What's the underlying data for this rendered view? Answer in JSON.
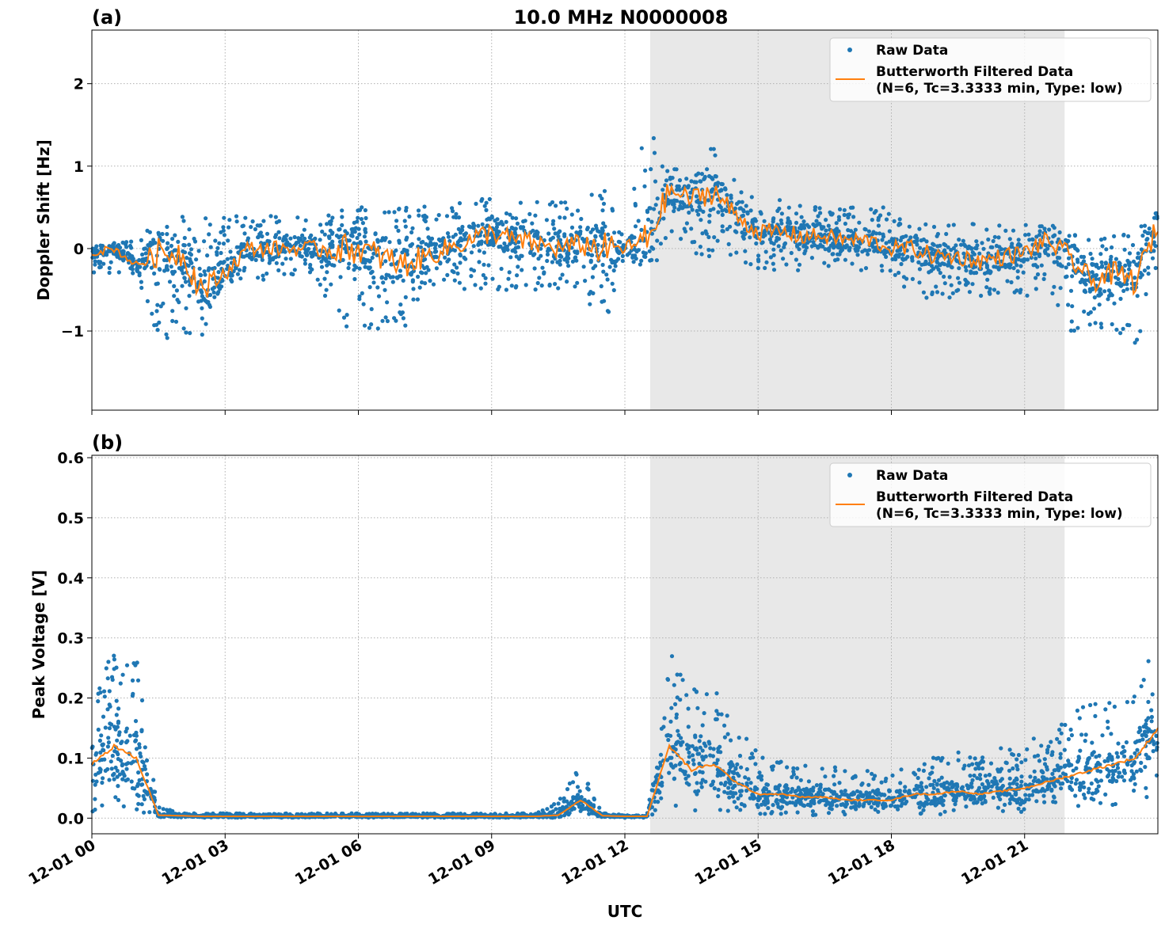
{
  "chart_data": [
    {
      "type": "scatter+line",
      "panel_label": "(a)",
      "title": "10.0 MHz N0000008",
      "xlabel": "",
      "ylabel": "Doppler Shift [Hz]",
      "xlim_hours": [
        0,
        24
      ],
      "ylim": [
        -1.96,
        2.65
      ],
      "yticks": [
        {
          "v": -1,
          "label": "−1"
        },
        {
          "v": 0,
          "label": "0"
        },
        {
          "v": 1,
          "label": "1"
        },
        {
          "v": 2,
          "label": "2"
        }
      ],
      "shaded_interval_hours": [
        12.57,
        21.9
      ],
      "grid": true,
      "legend": {
        "position": "top-right",
        "entries": [
          "Raw Data",
          "Butterworth Filtered Data",
          "(N=6, Tc=3.3333 min, Type: low)"
        ]
      },
      "t_hours": [
        0,
        0.5,
        1,
        1.5,
        2,
        2.5,
        3,
        3.5,
        4,
        4.5,
        5,
        5.5,
        6,
        6.5,
        7,
        7.5,
        8,
        8.5,
        9,
        9.5,
        10,
        10.5,
        11,
        11.5,
        12,
        12.5,
        13,
        13.5,
        14,
        14.5,
        15,
        15.5,
        16,
        16.5,
        17,
        17.5,
        18,
        18.5,
        19,
        19.5,
        20,
        20.5,
        21,
        21.5,
        22,
        22.5,
        23,
        23.5,
        24
      ],
      "series": [
        {
          "name": "Butterworth Filtered Data",
          "kind": "line",
          "color": "#ff7f0e",
          "values": [
            -0.05,
            0.0,
            -0.2,
            -0.05,
            -0.05,
            -0.5,
            -0.3,
            0.0,
            0.0,
            0.0,
            0.0,
            0.0,
            0.0,
            -0.1,
            -0.2,
            -0.1,
            0.0,
            0.1,
            0.2,
            0.1,
            0.05,
            0.0,
            0.05,
            0.0,
            0.0,
            0.1,
            0.7,
            0.6,
            0.7,
            0.4,
            0.2,
            0.2,
            0.15,
            0.15,
            0.1,
            0.1,
            0.0,
            0.0,
            -0.1,
            -0.1,
            -0.15,
            -0.1,
            -0.05,
            0.1,
            -0.1,
            -0.4,
            -0.3,
            -0.4,
            0.3
          ]
        },
        {
          "name": "Raw Data",
          "kind": "scatter-envelope",
          "color": "#1f77b4",
          "low": [
            -0.3,
            -0.3,
            -0.3,
            -1.1,
            -1.1,
            -1.1,
            -0.4,
            -0.4,
            -0.4,
            -0.4,
            -0.4,
            -1.0,
            -1.0,
            -1.0,
            -1.0,
            -0.5,
            -0.5,
            -0.5,
            -0.5,
            -0.5,
            -0.5,
            -0.5,
            -0.5,
            -1.0,
            -0.3,
            -0.2,
            -0.1,
            -0.1,
            -0.1,
            -0.1,
            -0.3,
            -0.3,
            -0.3,
            -0.3,
            -0.3,
            -0.3,
            -0.3,
            -0.6,
            -0.6,
            -0.6,
            -0.6,
            -0.6,
            -0.6,
            -0.4,
            -1.0,
            -1.0,
            -1.0,
            -1.2,
            -0.5
          ],
          "high": [
            0.1,
            0.1,
            0.1,
            0.4,
            0.4,
            0.4,
            0.4,
            0.4,
            0.4,
            0.4,
            0.4,
            0.5,
            0.5,
            0.5,
            0.5,
            0.6,
            0.6,
            0.6,
            0.6,
            0.6,
            0.6,
            0.6,
            0.6,
            0.8,
            0.3,
            1.8,
            1.0,
            0.9,
            1.3,
            0.8,
            0.6,
            0.6,
            0.6,
            0.5,
            0.5,
            0.5,
            0.5,
            0.3,
            0.3,
            0.3,
            0.3,
            0.3,
            0.3,
            0.5,
            0.2,
            0.2,
            0.2,
            0.2,
            0.6
          ]
        }
      ]
    },
    {
      "type": "scatter+line",
      "panel_label": "(b)",
      "xlabel": "UTC",
      "ylabel": "Peak Voltage [V]",
      "xlim_hours": [
        0,
        24
      ],
      "ylim": [
        -0.026,
        0.604
      ],
      "yticks": [
        {
          "v": 0.0,
          "label": "0.0"
        },
        {
          "v": 0.1,
          "label": "0.1"
        },
        {
          "v": 0.2,
          "label": "0.2"
        },
        {
          "v": 0.3,
          "label": "0.3"
        },
        {
          "v": 0.4,
          "label": "0.4"
        },
        {
          "v": 0.5,
          "label": "0.5"
        },
        {
          "v": 0.6,
          "label": "0.6"
        }
      ],
      "xticks": [
        {
          "v": 0,
          "label": "12-01 00"
        },
        {
          "v": 3,
          "label": "12-01 03"
        },
        {
          "v": 6,
          "label": "12-01 06"
        },
        {
          "v": 9,
          "label": "12-01 09"
        },
        {
          "v": 12,
          "label": "12-01 12"
        },
        {
          "v": 15,
          "label": "12-01 15"
        },
        {
          "v": 18,
          "label": "12-01 18"
        },
        {
          "v": 21,
          "label": "12-01 21"
        }
      ],
      "shaded_interval_hours": [
        12.57,
        21.9
      ],
      "grid": true,
      "legend": {
        "position": "top-right",
        "entries": [
          "Raw Data",
          "Butterworth Filtered Data",
          "(N=6, Tc=3.3333 min, Type: low)"
        ]
      },
      "t_hours": [
        0,
        0.5,
        1,
        1.5,
        2,
        2.5,
        3,
        3.5,
        4,
        4.5,
        5,
        5.5,
        6,
        6.5,
        7,
        7.5,
        8,
        8.5,
        9,
        9.5,
        10,
        10.5,
        11,
        11.5,
        12,
        12.5,
        13,
        13.5,
        14,
        14.5,
        15,
        15.5,
        16,
        16.5,
        17,
        17.5,
        18,
        18.5,
        19,
        19.5,
        20,
        20.5,
        21,
        21.5,
        22,
        22.5,
        23,
        23.5,
        24
      ],
      "series": [
        {
          "name": "Butterworth Filtered Data",
          "kind": "line",
          "color": "#ff7f0e",
          "values": [
            0.09,
            0.12,
            0.1,
            0.005,
            0.004,
            0.003,
            0.003,
            0.003,
            0.003,
            0.003,
            0.003,
            0.003,
            0.003,
            0.003,
            0.003,
            0.003,
            0.003,
            0.003,
            0.003,
            0.003,
            0.003,
            0.005,
            0.03,
            0.004,
            0.003,
            0.003,
            0.12,
            0.08,
            0.09,
            0.06,
            0.04,
            0.04,
            0.035,
            0.035,
            0.03,
            0.03,
            0.03,
            0.04,
            0.04,
            0.045,
            0.04,
            0.045,
            0.05,
            0.06,
            0.07,
            0.08,
            0.09,
            0.1,
            0.15
          ]
        },
        {
          "name": "Raw Data",
          "kind": "scatter-envelope",
          "color": "#1f77b4",
          "low": [
            0.01,
            0.02,
            0.01,
            0.001,
            0.001,
            0.001,
            0.001,
            0.001,
            0.001,
            0.001,
            0.001,
            0.001,
            0.001,
            0.001,
            0.001,
            0.001,
            0.001,
            0.001,
            0.001,
            0.001,
            0.001,
            0.001,
            0.01,
            0.001,
            0.001,
            0.001,
            0.02,
            0.01,
            0.01,
            0.01,
            0.005,
            0.005,
            0.005,
            0.005,
            0.005,
            0.005,
            0.005,
            0.005,
            0.005,
            0.01,
            0.01,
            0.01,
            0.01,
            0.02,
            0.02,
            0.02,
            0.02,
            0.03,
            0.04
          ],
          "high": [
            0.19,
            0.3,
            0.27,
            0.02,
            0.008,
            0.008,
            0.008,
            0.008,
            0.008,
            0.008,
            0.008,
            0.008,
            0.008,
            0.008,
            0.008,
            0.008,
            0.008,
            0.008,
            0.008,
            0.008,
            0.008,
            0.03,
            0.09,
            0.01,
            0.005,
            0.005,
            0.3,
            0.22,
            0.25,
            0.15,
            0.12,
            0.1,
            0.09,
            0.09,
            0.08,
            0.08,
            0.07,
            0.11,
            0.1,
            0.11,
            0.1,
            0.12,
            0.13,
            0.15,
            0.17,
            0.2,
            0.2,
            0.22,
            0.3
          ]
        }
      ]
    }
  ]
}
